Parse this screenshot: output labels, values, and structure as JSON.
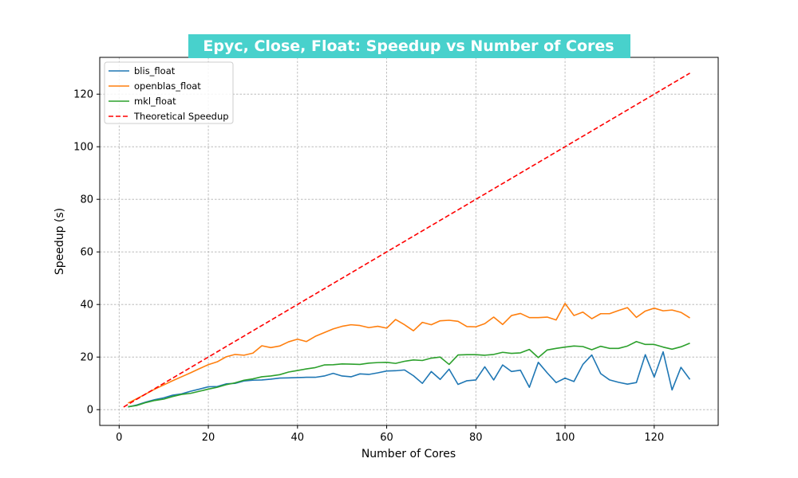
{
  "chart_data": {
    "type": "line",
    "title": "Epyc, Close, Float: Speedup vs Number of Cores",
    "title_background": "#48d1cc",
    "xlabel": "Number of Cores",
    "ylabel": "Speedup (s)",
    "xlim": [
      -4.35,
      134.35
    ],
    "ylim": [
      -6,
      134
    ],
    "xticks": [
      0,
      20,
      40,
      60,
      80,
      100,
      120
    ],
    "yticks": [
      0,
      20,
      40,
      60,
      80,
      100,
      120
    ],
    "xtick_labels": [
      "0",
      "20",
      "40",
      "60",
      "80",
      "100",
      "120"
    ],
    "ytick_labels": [
      "0",
      "20",
      "40",
      "60",
      "80",
      "100",
      "120"
    ],
    "grid": true,
    "legend_position": "top-left",
    "x": [
      2,
      4,
      6,
      8,
      10,
      12,
      14,
      16,
      18,
      20,
      22,
      24,
      26,
      28,
      30,
      32,
      34,
      36,
      38,
      40,
      42,
      44,
      46,
      48,
      50,
      52,
      54,
      56,
      58,
      60,
      62,
      64,
      66,
      68,
      70,
      72,
      74,
      76,
      78,
      80,
      82,
      84,
      86,
      88,
      90,
      92,
      94,
      96,
      98,
      100,
      102,
      104,
      106,
      108,
      110,
      112,
      114,
      116,
      118,
      120,
      122,
      124,
      126,
      128
    ],
    "series": [
      {
        "name": "blis_float",
        "color": "#1f77b4",
        "style": "solid",
        "values": [
          1.0,
          1.8,
          2.9,
          3.8,
          4.5,
          5.5,
          6.0,
          7.0,
          7.8,
          8.7,
          8.8,
          9.8,
          10.0,
          10.9,
          11.2,
          11.3,
          11.6,
          12.0,
          12.1,
          12.2,
          12.3,
          12.3,
          12.8,
          13.8,
          12.8,
          12.5,
          13.6,
          13.4,
          14.0,
          14.7,
          14.8,
          15.1,
          12.9,
          10.0,
          14.5,
          11.5,
          15.4,
          9.6,
          11.0,
          11.3,
          16.3,
          11.3,
          17.0,
          14.5,
          15.0,
          8.5,
          18.0,
          14.0,
          10.3,
          12.0,
          10.7,
          17.2,
          20.8,
          13.7,
          11.3,
          10.4,
          9.7,
          10.3,
          20.9,
          12.4,
          22.0,
          7.5,
          16.1,
          11.5
        ]
      },
      {
        "name": "openblas_float",
        "color": "#ff7f0e",
        "style": "solid",
        "values": [
          2.5,
          4.2,
          6.0,
          7.8,
          9.4,
          11.0,
          12.5,
          14.0,
          15.6,
          17.1,
          18.2,
          20.1,
          21.0,
          20.7,
          21.5,
          24.3,
          23.6,
          24.2,
          25.8,
          26.8,
          25.9,
          27.9,
          29.3,
          30.7,
          31.7,
          32.3,
          32.0,
          31.2,
          31.7,
          31.0,
          34.3,
          32.3,
          30.0,
          33.2,
          32.3,
          33.8,
          34.0,
          33.6,
          31.6,
          31.5,
          32.7,
          35.2,
          32.4,
          35.8,
          36.6,
          35.0,
          35.0,
          35.2,
          34.1,
          40.4,
          35.8,
          37.1,
          34.6,
          36.5,
          36.5,
          37.7,
          38.8,
          35.1,
          37.5,
          38.6,
          37.6,
          37.9,
          37.0,
          34.9
        ]
      },
      {
        "name": "mkl_float",
        "color": "#2ca02c",
        "style": "solid",
        "values": [
          1.1,
          1.6,
          2.7,
          3.5,
          4.0,
          5.0,
          5.8,
          6.2,
          7.0,
          7.8,
          8.5,
          9.5,
          10.2,
          11.2,
          11.7,
          12.5,
          12.8,
          13.3,
          14.3,
          14.9,
          15.5,
          16.0,
          17.0,
          17.1,
          17.4,
          17.3,
          17.2,
          17.7,
          17.9,
          18.0,
          17.6,
          18.4,
          18.9,
          18.7,
          19.6,
          20.0,
          17.2,
          20.8,
          20.9,
          20.9,
          20.7,
          21.0,
          21.8,
          21.4,
          21.6,
          22.9,
          19.8,
          22.7,
          23.3,
          23.8,
          24.2,
          24.0,
          22.8,
          24.1,
          23.3,
          23.3,
          24.2,
          25.9,
          24.8,
          24.8,
          23.8,
          23.0,
          23.9,
          25.3
        ]
      },
      {
        "name": "Theoretical Speedup",
        "color": "#ff0000",
        "style": "dashed",
        "x": [
          1,
          128
        ],
        "values": [
          1,
          128
        ]
      }
    ]
  }
}
